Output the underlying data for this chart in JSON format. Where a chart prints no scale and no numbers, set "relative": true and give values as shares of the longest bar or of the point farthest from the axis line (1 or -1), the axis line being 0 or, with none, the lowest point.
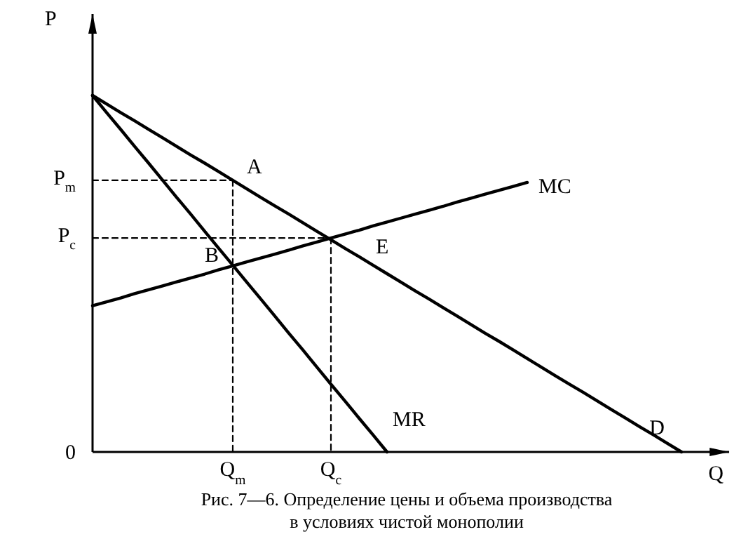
{
  "chart_data": {
    "type": "line",
    "relative": true,
    "title": "Рис. 7—6. Определение цены и объема производства в условиях чистой монополии",
    "xlabel": "Q",
    "ylabel": "P",
    "categories": [
      null,
      null,
      null,
      null,
      null,
      null,
      null,
      null,
      null,
      null,
      "Q$_{m}$",
      null,
      null,
      null,
      null,
      null,
      null,
      "Q$_{c}$",
      null,
      null,
      null,
      null,
      null,
      null,
      null,
      null,
      null,
      null,
      null,
      null,
      null,
      null,
      null,
      null,
      null,
      null,
      null,
      null,
      null,
      null,
      null,
      null,
      null
    ],
    "series": [
      {
        "name": "D",
        "color": "#000000",
        "values": [
          1,
          0.976,
          0.952,
          0.929,
          0.905,
          0.881,
          0.857,
          0.833,
          0.81,
          0.786,
          0.762,
          0.738,
          0.714,
          0.69,
          0.667,
          0.643,
          0.619,
          0.595,
          0.571,
          0.548,
          0.524,
          0.5,
          0.476,
          0.452,
          0.429,
          0.405,
          0.381,
          0.357,
          0.333,
          0.31,
          0.286,
          0.262,
          0.238,
          0.214,
          0.19,
          0.167,
          0.143,
          0.119,
          0.095,
          0.071,
          0.048,
          0.024,
          0
        ]
      },
      {
        "name": "MR",
        "color": "#000000",
        "values": [
          1,
          0.952,
          0.905,
          0.857,
          0.81,
          0.762,
          0.714,
          0.667,
          0.619,
          0.571,
          0.524,
          0.476,
          0.429,
          0.381,
          0.333,
          0.286,
          0.238,
          0.19,
          0.143,
          0.095,
          0.048,
          0,
          null,
          null,
          null,
          null,
          null,
          null,
          null,
          null,
          null,
          null,
          null,
          null,
          null,
          null,
          null,
          null,
          null,
          null,
          null,
          null,
          null
        ]
      },
      {
        "name": "MC",
        "color": "#000000",
        "values": [
          0.41,
          0.421,
          0.432,
          0.444,
          0.455,
          0.466,
          0.477,
          0.488,
          0.499,
          0.511,
          0.522,
          0.533,
          0.544,
          0.555,
          0.566,
          0.578,
          0.589,
          0.6,
          0.611,
          0.622,
          0.634,
          0.645,
          0.656,
          0.667,
          0.678,
          0.689,
          0.701,
          0.712,
          0.723,
          0.734,
          0.745,
          0.756,
          null,
          null,
          null,
          null,
          null,
          null,
          null,
          null,
          null,
          null,
          null
        ]
      },
      {
        "color": "#000000",
        "line_style": "dashed",
        "values": [
          0.762,
          0.762,
          0.762,
          0.762,
          0.762,
          0.762,
          0.762,
          0.762,
          0.762,
          0.762,
          0.762,
          null,
          null,
          null,
          null,
          null,
          null,
          null,
          null,
          null,
          null,
          null,
          null,
          null,
          null,
          null,
          null,
          null,
          null,
          null,
          null,
          null,
          null,
          null,
          null,
          null,
          null,
          null,
          null,
          null,
          null,
          null,
          null
        ]
      },
      {
        "color": "#000000",
        "line_style": "dashed",
        "values": [
          0.6,
          0.6,
          0.6,
          0.6,
          0.6,
          0.6,
          0.6,
          0.6,
          0.6,
          0.6,
          0.6,
          0.6,
          0.6,
          0.6,
          0.6,
          0.6,
          0.6,
          0.6,
          null,
          null,
          null,
          null,
          null,
          null,
          null,
          null,
          null,
          null,
          null,
          null,
          null,
          null,
          null,
          null,
          null,
          null,
          null,
          null,
          null,
          null,
          null,
          null,
          null
        ]
      },
      {
        "color": "#000000",
        "line_style": "dashed",
        "x": [
          "Q$_{m}$",
          "Q$_{m}$"
        ],
        "values": [
          0.762,
          0
        ]
      },
      {
        "color": "#000000",
        "line_style": "dashed",
        "x": [
          "Q$_{c}$",
          "Q$_{c}$"
        ],
        "values": [
          0.6,
          0
        ]
      }
    ],
    "annotations": [
      {
        "text": "A",
        "x": "Q$_{m}$",
        "y": 0.762
      },
      {
        "text": "B",
        "x": "Q$_{m}$",
        "y": 0.522
      },
      {
        "text": "E",
        "x": "Q$_{c}$",
        "y": 0.6
      },
      "P$_{m}$",
      "P$_{c}$",
      "0"
    ]
  }
}
